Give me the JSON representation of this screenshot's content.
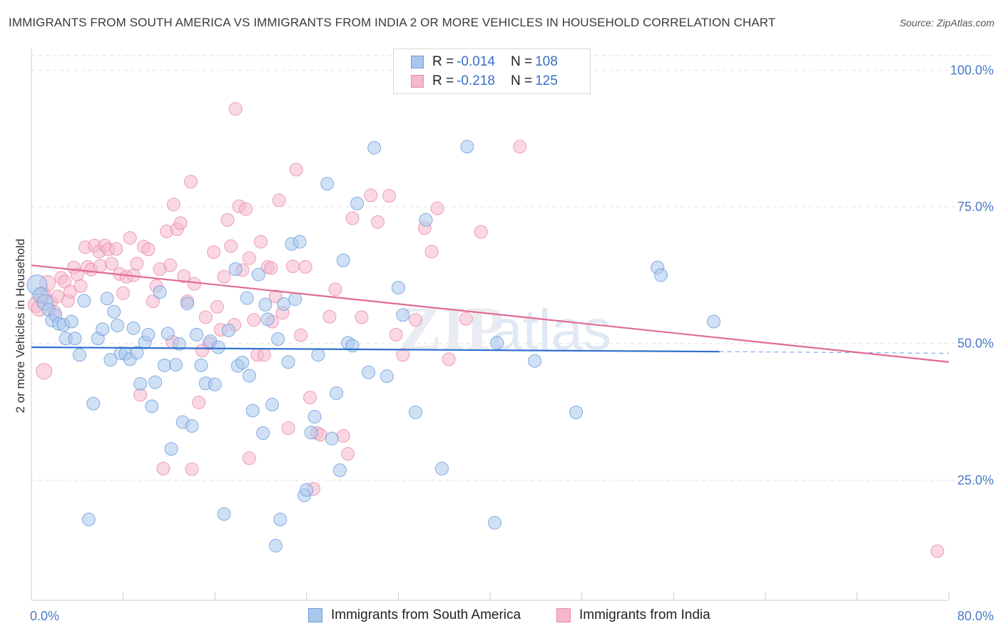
{
  "header": {
    "title": "IMMIGRANTS FROM SOUTH AMERICA VS IMMIGRANTS FROM INDIA 2 OR MORE VEHICLES IN HOUSEHOLD CORRELATION CHART",
    "source": "Source: ZipAtlas.com"
  },
  "legend": {
    "rows": [
      {
        "r_label": "R = ",
        "r_value": "-0.014",
        "n_label": "N = ",
        "n_value": "108"
      },
      {
        "r_label": "R = ",
        "r_value": "-0.218",
        "n_label": "N = ",
        "n_value": "125"
      }
    ]
  },
  "watermark": {
    "zip": "ZIP",
    "atlas": "atlas"
  },
  "colors": {
    "blue_fill": "#aac8ee",
    "blue_stroke": "#6a9ad8",
    "blue_line": "#2e6fce",
    "pink_fill": "#f5b8cc",
    "pink_stroke": "#e88aa8",
    "pink_line": "#e06a94",
    "tick_label": "#4a7bc8",
    "grid": "#e2e2e2"
  },
  "chart_data": {
    "type": "scatter",
    "title": "IMMIGRANTS FROM SOUTH AMERICA VS IMMIGRANTS FROM INDIA 2 OR MORE VEHICLES IN HOUSEHOLD CORRELATION CHART",
    "xlabel": "",
    "ylabel": "2 or more Vehicles in Household",
    "xlim": [
      0,
      80
    ],
    "ylim": [
      3,
      105
    ],
    "x_tick_labels": [
      "0.0%",
      "80.0%"
    ],
    "y_ticks": [
      25,
      50,
      75,
      100
    ],
    "y_tick_labels": [
      "25.0%",
      "50.0%",
      "75.0%",
      "100.0%"
    ],
    "grid": true,
    "legend_position": "bottom",
    "series": [
      {
        "name": "Immigrants from South America",
        "color": "#aac8ee",
        "r": -0.014,
        "n": 108,
        "trend": {
          "x": [
            0,
            60
          ],
          "y": [
            49.3,
            48.5
          ],
          "dashed_to_x": 80,
          "dashed_to_y": 48.2
        },
        "points": [
          [
            0.5,
            60.7
          ],
          [
            0.8,
            58.8
          ],
          [
            1.2,
            57.5
          ],
          [
            1.5,
            56.2
          ],
          [
            1.8,
            54.2
          ],
          [
            2.1,
            55.2
          ],
          [
            2.4,
            53.6
          ],
          [
            2.8,
            53.4
          ],
          [
            3.0,
            50.9
          ],
          [
            3.5,
            54.0
          ],
          [
            3.8,
            50.9
          ],
          [
            4.2,
            47.9
          ],
          [
            4.6,
            57.8
          ],
          [
            5.0,
            17.8
          ],
          [
            5.4,
            39.0
          ],
          [
            5.8,
            50.9
          ],
          [
            6.2,
            52.6
          ],
          [
            6.6,
            58.2
          ],
          [
            6.9,
            47.0
          ],
          [
            7.2,
            55.8
          ],
          [
            7.5,
            53.3
          ],
          [
            7.8,
            48.2
          ],
          [
            8.2,
            48.1
          ],
          [
            8.6,
            47.1
          ],
          [
            8.9,
            52.8
          ],
          [
            9.2,
            48.3
          ],
          [
            9.5,
            42.6
          ],
          [
            9.9,
            50.2
          ],
          [
            10.2,
            51.6
          ],
          [
            10.5,
            38.5
          ],
          [
            10.8,
            42.9
          ],
          [
            11.2,
            59.4
          ],
          [
            11.6,
            46.0
          ],
          [
            11.9,
            51.8
          ],
          [
            12.2,
            30.7
          ],
          [
            12.6,
            46.1
          ],
          [
            12.9,
            49.9
          ],
          [
            13.2,
            35.6
          ],
          [
            13.6,
            57.3
          ],
          [
            14.0,
            34.9
          ],
          [
            14.4,
            51.6
          ],
          [
            14.8,
            46.0
          ],
          [
            15.2,
            42.7
          ],
          [
            15.6,
            50.4
          ],
          [
            16.0,
            42.5
          ],
          [
            16.3,
            49.3
          ],
          [
            16.8,
            18.8
          ],
          [
            17.2,
            52.4
          ],
          [
            17.8,
            63.6
          ],
          [
            18.0,
            45.9
          ],
          [
            18.4,
            46.5
          ],
          [
            18.8,
            58.3
          ],
          [
            19.0,
            44.1
          ],
          [
            19.3,
            37.7
          ],
          [
            19.8,
            62.6
          ],
          [
            20.2,
            33.6
          ],
          [
            20.4,
            57.1
          ],
          [
            20.6,
            54.4
          ],
          [
            21.0,
            38.8
          ],
          [
            21.3,
            13.0
          ],
          [
            21.5,
            50.8
          ],
          [
            21.7,
            17.8
          ],
          [
            22.0,
            57.2
          ],
          [
            22.4,
            46.6
          ],
          [
            22.7,
            68.2
          ],
          [
            23.0,
            58.1
          ],
          [
            23.4,
            68.6
          ],
          [
            23.8,
            22.2
          ],
          [
            24.0,
            23.2
          ],
          [
            24.4,
            33.7
          ],
          [
            24.7,
            36.6
          ],
          [
            25.0,
            47.9
          ],
          [
            25.8,
            79.2
          ],
          [
            26.2,
            32.6
          ],
          [
            26.6,
            40.9
          ],
          [
            26.9,
            26.8
          ],
          [
            27.2,
            65.2
          ],
          [
            27.6,
            50.1
          ],
          [
            28.0,
            49.6
          ],
          [
            28.4,
            75.6
          ],
          [
            29.4,
            44.7
          ],
          [
            29.9,
            85.8
          ],
          [
            31.0,
            44.0
          ],
          [
            32.0,
            60.2
          ],
          [
            32.4,
            55.2
          ],
          [
            33.5,
            37.4
          ],
          [
            34.4,
            72.6
          ],
          [
            35.8,
            27.1
          ],
          [
            38.0,
            86.0
          ],
          [
            40.4,
            17.2
          ],
          [
            40.6,
            50.1
          ],
          [
            43.9,
            46.8
          ],
          [
            47.5,
            37.4
          ],
          [
            54.6,
            63.9
          ],
          [
            54.9,
            62.5
          ],
          [
            59.5,
            54.0
          ]
        ]
      },
      {
        "name": "Immigrants from India",
        "color": "#f5b8cc",
        "r": -0.218,
        "n": 125,
        "trend": {
          "x": [
            0,
            80
          ],
          "y": [
            64.3,
            46.6
          ]
        },
        "points": [
          [
            0.4,
            57.1
          ],
          [
            0.7,
            56.4
          ],
          [
            1.0,
            58.9
          ],
          [
            1.1,
            44.9
          ],
          [
            1.4,
            61.0
          ],
          [
            1.7,
            57.6
          ],
          [
            2.0,
            55.8
          ],
          [
            2.3,
            58.6
          ],
          [
            2.6,
            62.0
          ],
          [
            2.9,
            61.3
          ],
          [
            3.2,
            57.8
          ],
          [
            3.4,
            59.5
          ],
          [
            3.7,
            63.9
          ],
          [
            4.0,
            62.6
          ],
          [
            4.3,
            60.5
          ],
          [
            4.7,
            67.6
          ],
          [
            4.9,
            64.0
          ],
          [
            5.2,
            63.5
          ],
          [
            5.5,
            67.9
          ],
          [
            5.9,
            66.8
          ],
          [
            6.0,
            64.2
          ],
          [
            6.4,
            67.9
          ],
          [
            6.7,
            67.2
          ],
          [
            7.0,
            64.6
          ],
          [
            7.4,
            67.3
          ],
          [
            7.7,
            62.7
          ],
          [
            8.0,
            59.2
          ],
          [
            8.3,
            62.2
          ],
          [
            8.6,
            69.3
          ],
          [
            8.9,
            62.5
          ],
          [
            9.2,
            64.6
          ],
          [
            9.5,
            40.6
          ],
          [
            9.8,
            67.7
          ],
          [
            10.2,
            67.2
          ],
          [
            10.6,
            57.7
          ],
          [
            10.9,
            60.5
          ],
          [
            11.2,
            63.6
          ],
          [
            11.5,
            27.1
          ],
          [
            11.8,
            70.5
          ],
          [
            12.1,
            64.3
          ],
          [
            12.4,
            75.4
          ],
          [
            12.7,
            70.9
          ],
          [
            13.0,
            72.0
          ],
          [
            13.3,
            62.3
          ],
          [
            13.6,
            57.7
          ],
          [
            13.9,
            79.6
          ],
          [
            14.2,
            60.9
          ],
          [
            14.6,
            39.2
          ],
          [
            14.9,
            48.7
          ],
          [
            15.2,
            54.8
          ],
          [
            15.5,
            50.0
          ],
          [
            15.9,
            66.7
          ],
          [
            16.2,
            56.7
          ],
          [
            16.5,
            52.5
          ],
          [
            16.8,
            62.2
          ],
          [
            17.1,
            72.6
          ],
          [
            17.4,
            67.8
          ],
          [
            17.7,
            53.4
          ],
          [
            18.1,
            75.1
          ],
          [
            18.4,
            63.4
          ],
          [
            18.7,
            74.6
          ],
          [
            19.0,
            65.6
          ],
          [
            19.4,
            54.3
          ],
          [
            19.7,
            47.9
          ],
          [
            20.0,
            68.6
          ],
          [
            20.3,
            47.9
          ],
          [
            20.6,
            64.0
          ],
          [
            20.9,
            63.8
          ],
          [
            21.3,
            58.6
          ],
          [
            21.6,
            76.2
          ],
          [
            21.9,
            55.6
          ],
          [
            22.4,
            34.5
          ],
          [
            22.8,
            64.1
          ],
          [
            23.1,
            81.8
          ],
          [
            23.5,
            51.5
          ],
          [
            23.9,
            64.0
          ],
          [
            24.3,
            40.1
          ],
          [
            24.6,
            23.4
          ],
          [
            24.9,
            33.6
          ],
          [
            25.2,
            33.3
          ],
          [
            26.0,
            54.9
          ],
          [
            26.5,
            59.9
          ],
          [
            27.2,
            33.1
          ],
          [
            27.6,
            29.8
          ],
          [
            28.0,
            72.9
          ],
          [
            28.8,
            54.8
          ],
          [
            29.6,
            77.1
          ],
          [
            30.2,
            72.2
          ],
          [
            31.2,
            77.0
          ],
          [
            31.8,
            51.6
          ],
          [
            32.4,
            47.9
          ],
          [
            33.5,
            54.3
          ],
          [
            34.3,
            71.1
          ],
          [
            34.9,
            66.8
          ],
          [
            35.4,
            74.7
          ],
          [
            36.4,
            47.1
          ],
          [
            37.9,
            54.5
          ],
          [
            39.2,
            70.4
          ],
          [
            42.6,
            86.0
          ],
          [
            79.0,
            12.0
          ],
          [
            12.3,
            50.3
          ],
          [
            14.0,
            27.0
          ],
          [
            17.8,
            92.9
          ],
          [
            19.0,
            29.0
          ],
          [
            21.0,
            54.0
          ]
        ]
      }
    ]
  }
}
